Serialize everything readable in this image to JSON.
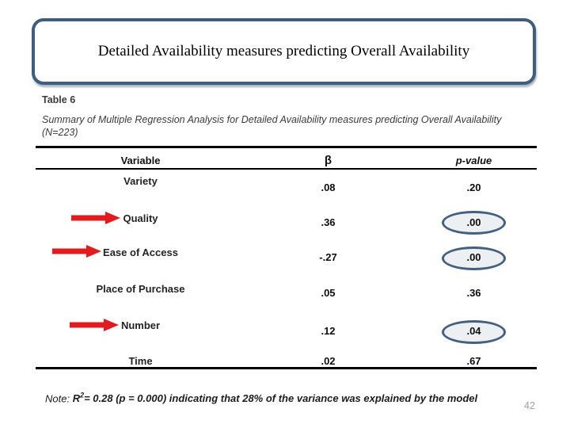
{
  "slide": {
    "title": "Detailed Availability measures predicting Overall Availability",
    "table_label": "Table 6",
    "table_caption": "Summary of Multiple Regression Analysis for Detailed Availability measures predicting Overall Availability (N=223)",
    "note": {
      "prefix": "Note: ",
      "r_symbol": "R",
      "r_exponent": "2",
      "rest": "= 0.28 (p = 0.000) indicating that 28% of the variance was explained by the model"
    },
    "page_number": "42"
  },
  "table": {
    "columns": {
      "variable": "Variable",
      "beta": "β",
      "p": "p-value"
    },
    "rows": [
      {
        "variable": "Variety",
        "beta": ".08",
        "p": ".20",
        "arrow": false,
        "circled": false
      },
      {
        "variable": "Quality",
        "beta": ".36",
        "p": ".00",
        "arrow": true,
        "circled": true
      },
      {
        "variable": "Ease of Access",
        "beta": "-.27",
        "p": ".00",
        "arrow": true,
        "circled": true
      },
      {
        "variable": "Place of Purchase",
        "beta": ".05",
        "p": ".36",
        "arrow": false,
        "circled": false
      },
      {
        "variable": "Number",
        "beta": ".12",
        "p": ".04",
        "arrow": true,
        "circled": true
      },
      {
        "variable": "Time",
        "beta": ".02",
        "p": ".67",
        "arrow": false,
        "circled": false
      }
    ]
  },
  "colors": {
    "box_border": "#3f5d7d",
    "arrow_red": "#e21b1e",
    "ellipse_stroke": "#44607e",
    "ellipse_fill": "#edf0f3",
    "rule_black": "#000000",
    "page_number_gray": "#9ba1a6"
  }
}
